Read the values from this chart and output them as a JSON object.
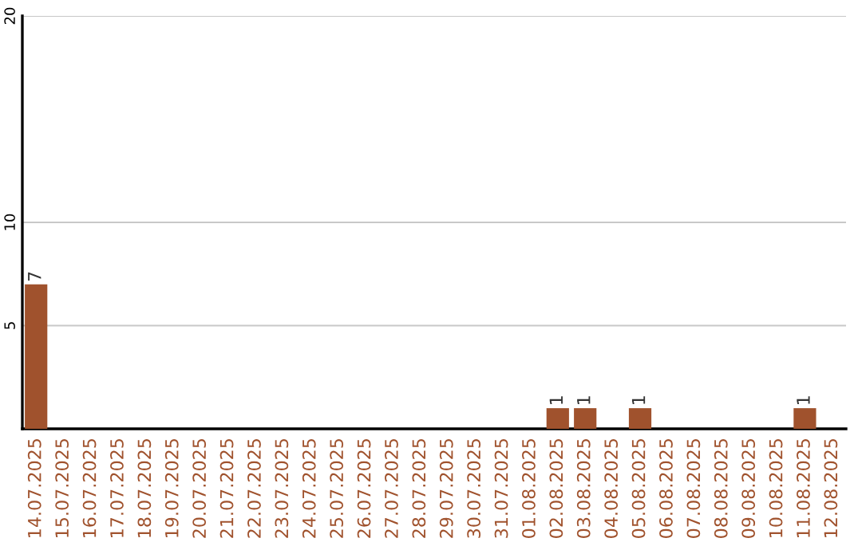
{
  "chart_data": {
    "type": "bar",
    "categories": [
      "14.07.2025",
      "15.07.2025",
      "16.07.2025",
      "17.07.2025",
      "18.07.2025",
      "19.07.2025",
      "20.07.2025",
      "21.07.2025",
      "22.07.2025",
      "23.07.2025",
      "24.07.2025",
      "25.07.2025",
      "26.07.2025",
      "27.07.2025",
      "28.07.2025",
      "29.07.2025",
      "30.07.2025",
      "31.07.2025",
      "01.08.2025",
      "02.08.2025",
      "03.08.2025",
      "04.08.2025",
      "05.08.2025",
      "06.08.2025",
      "07.08.2025",
      "08.08.2025",
      "09.08.2025",
      "10.08.2025",
      "11.08.2025",
      "12.08.2025"
    ],
    "values": [
      7,
      0,
      0,
      0,
      0,
      0,
      0,
      0,
      0,
      0,
      0,
      0,
      0,
      0,
      0,
      0,
      0,
      0,
      0,
      1,
      1,
      0,
      1,
      0,
      0,
      0,
      0,
      0,
      1,
      0
    ],
    "value_labels": [
      "7",
      null,
      null,
      null,
      null,
      null,
      null,
      null,
      null,
      null,
      null,
      null,
      null,
      null,
      null,
      null,
      null,
      null,
      null,
      "1",
      "1",
      null,
      "1",
      null,
      null,
      null,
      null,
      null,
      "1",
      null
    ],
    "color": "#a0522d",
    "ylim": [
      0,
      20
    ],
    "yticks": [
      5,
      10,
      20
    ],
    "grid": "y",
    "legend": false
  }
}
